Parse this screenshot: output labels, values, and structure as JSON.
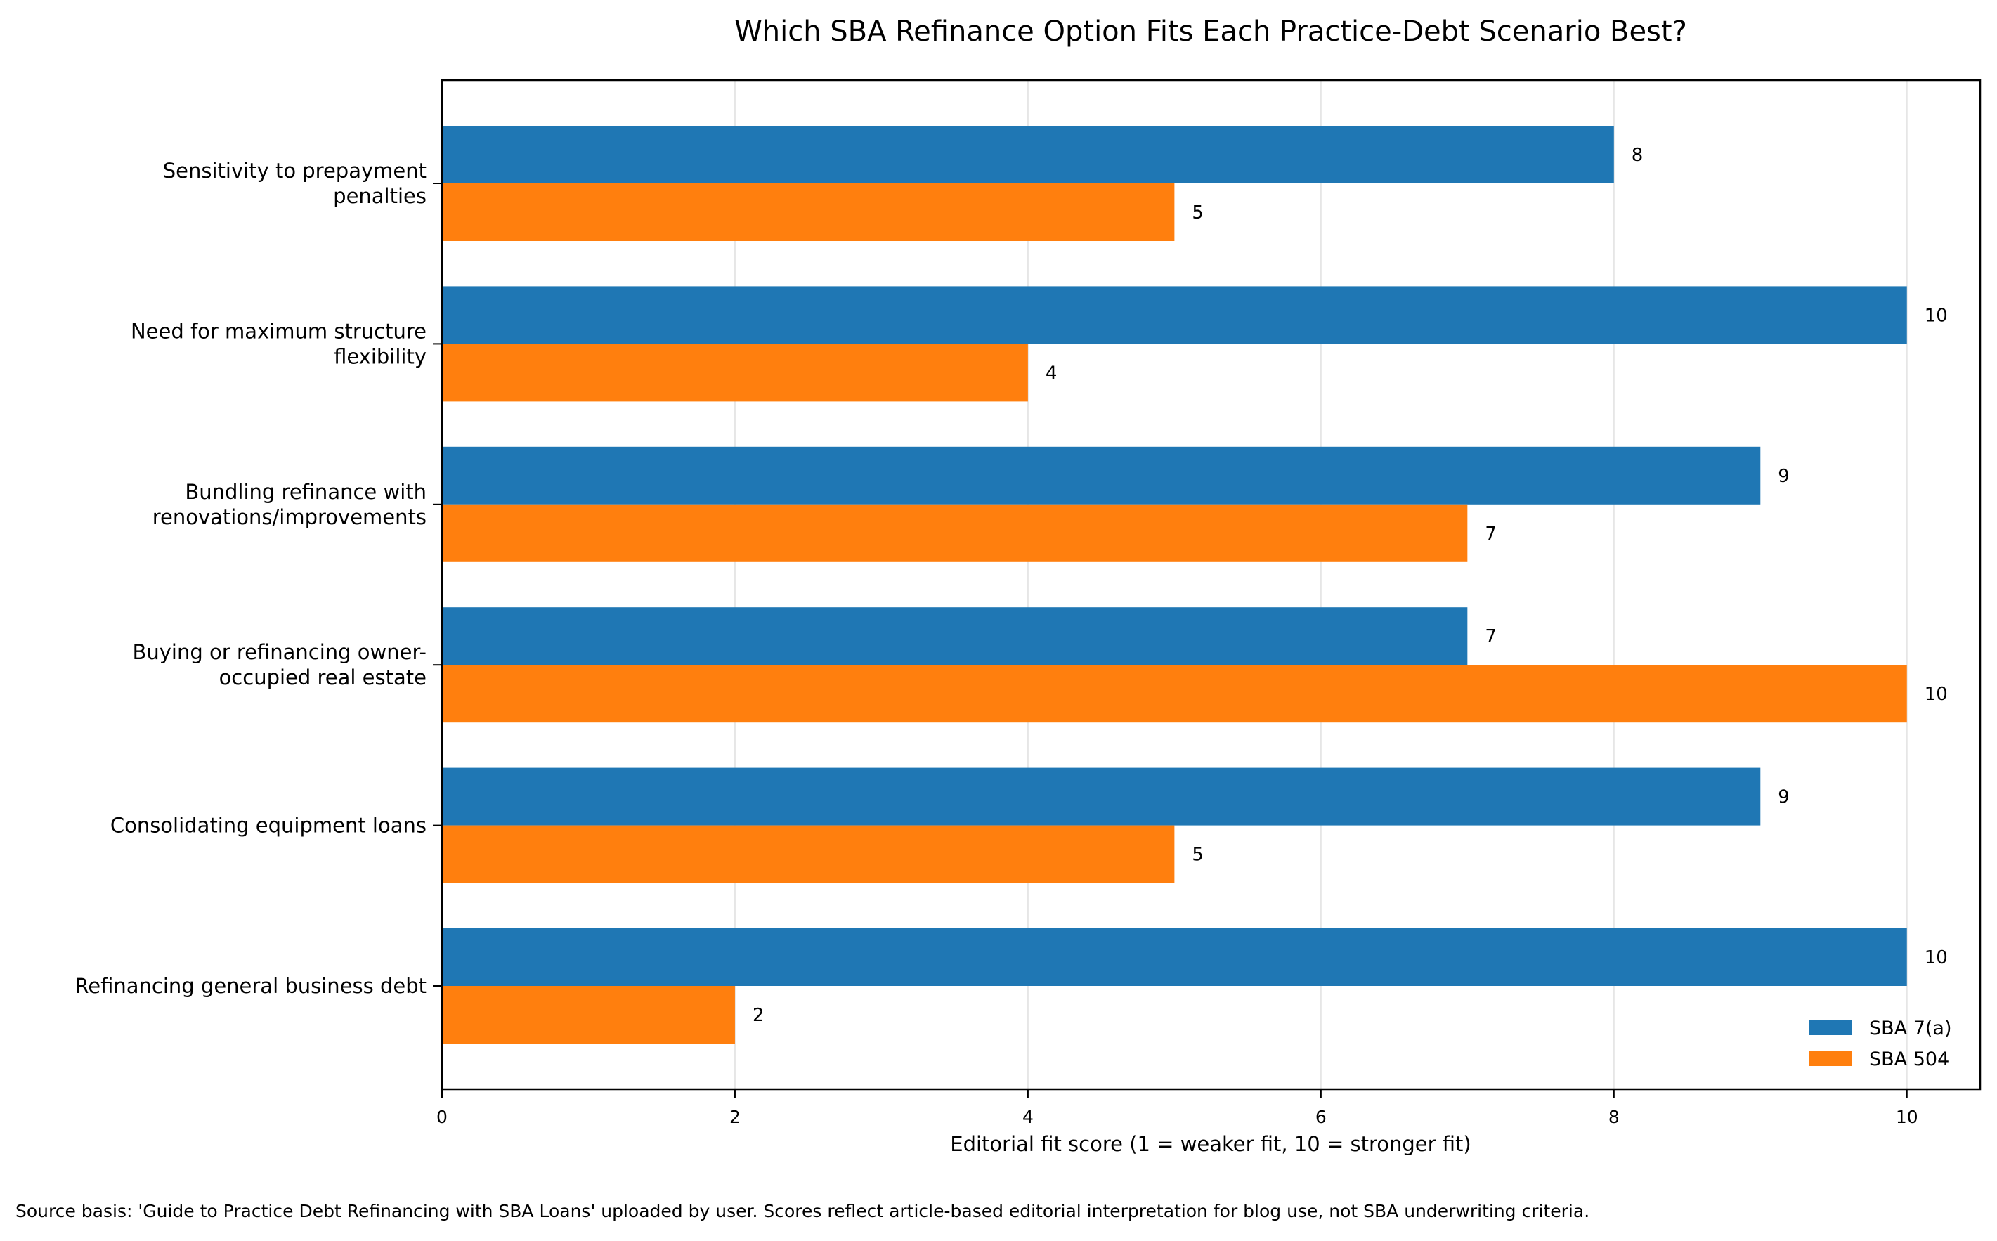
{
  "chart_data": {
    "type": "bar",
    "orientation": "horizontal",
    "title": "Which SBA Refinance Option Fits Each Practice-Debt Scenario Best?",
    "xlabel": "Editorial fit score (1 = weaker fit, 10 = stronger fit)",
    "ylabel": "",
    "xlim": [
      0,
      10.5
    ],
    "xticks": [
      0,
      2,
      4,
      6,
      8,
      10
    ],
    "grid": "x",
    "legend_position": "lower-right",
    "categories": [
      "Sensitivity to prepayment\npenalties",
      "Need for maximum structure\nflexibility",
      "Bundling refinance with\nrenovations/improvements",
      "Buying or refinancing owner-\noccupied real estate",
      "Consolidating equipment loans",
      "Refinancing general business debt"
    ],
    "series": [
      {
        "name": "SBA 7(a)",
        "color": "#1f77b4",
        "values": [
          8,
          10,
          9,
          7,
          9,
          10
        ]
      },
      {
        "name": "SBA 504",
        "color": "#ff7f0e",
        "values": [
          5,
          4,
          7,
          10,
          5,
          2
        ]
      }
    ]
  },
  "footnote": "Source basis: 'Guide to Practice Debt Refinancing with SBA Loans' uploaded by user. Scores reflect article-based editorial interpretation for blog use, not SBA underwriting criteria."
}
